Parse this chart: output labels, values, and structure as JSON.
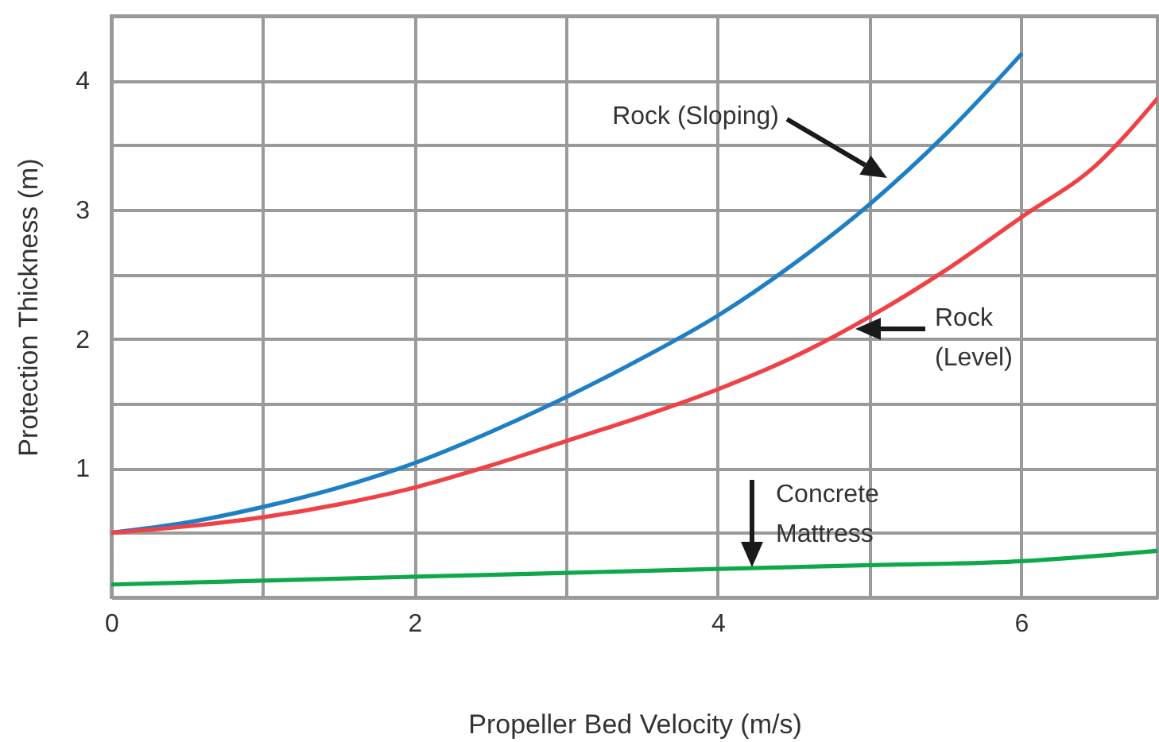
{
  "chart_data": {
    "type": "line",
    "xlabel": "Propeller Bed Velocity (m/s)",
    "ylabel": "Protection Thickness (m)",
    "xlim": [
      0,
      6.9
    ],
    "ylim": [
      0,
      4.5
    ],
    "xticks": [
      0,
      {
        "value": 1,
        "label": null
      },
      2,
      {
        "value": 3,
        "label": null
      },
      4,
      {
        "value": 5,
        "label": null
      },
      6
    ],
    "yticks": [
      {
        "value": 0,
        "label": null
      },
      {
        "value": 0.5,
        "label": null
      },
      1,
      {
        "value": 1.5,
        "label": null
      },
      2,
      {
        "value": 2.5,
        "label": null
      },
      3,
      {
        "value": 3.5,
        "label": null
      },
      4,
      {
        "value": 4.5,
        "label": null
      }
    ],
    "grid": true,
    "series": [
      {
        "color": "#1f7fc4",
        "x": [
          0,
          0.5,
          1,
          1.5,
          2,
          2.5,
          3,
          3.5,
          4,
          4.5,
          5,
          5.5,
          6
        ],
        "values": [
          0.5,
          0.58,
          0.7,
          0.85,
          1.04,
          1.28,
          1.55,
          1.85,
          2.18,
          2.58,
          3.04,
          3.58,
          4.2
        ]
      },
      {
        "color": "#ef4146",
        "x": [
          0,
          0.5,
          1,
          1.5,
          2,
          2.5,
          3,
          3.5,
          4,
          4.5,
          5,
          5.5,
          6,
          6.5,
          6.9
        ],
        "values": [
          0.5,
          0.55,
          0.62,
          0.72,
          0.85,
          1.02,
          1.21,
          1.4,
          1.61,
          1.86,
          2.17,
          2.53,
          2.94,
          3.35,
          3.86
        ]
      },
      {
        "color": "#0ea84a",
        "x": [
          0,
          1,
          2,
          3,
          4,
          5,
          6,
          6.9
        ],
        "values": [
          0.1,
          0.13,
          0.16,
          0.19,
          0.22,
          0.25,
          0.28,
          0.36
        ]
      }
    ],
    "annotations": [
      "Rock (Sloping)",
      "Rock\n(Level)",
      "Concrete\nMattress"
    ]
  }
}
